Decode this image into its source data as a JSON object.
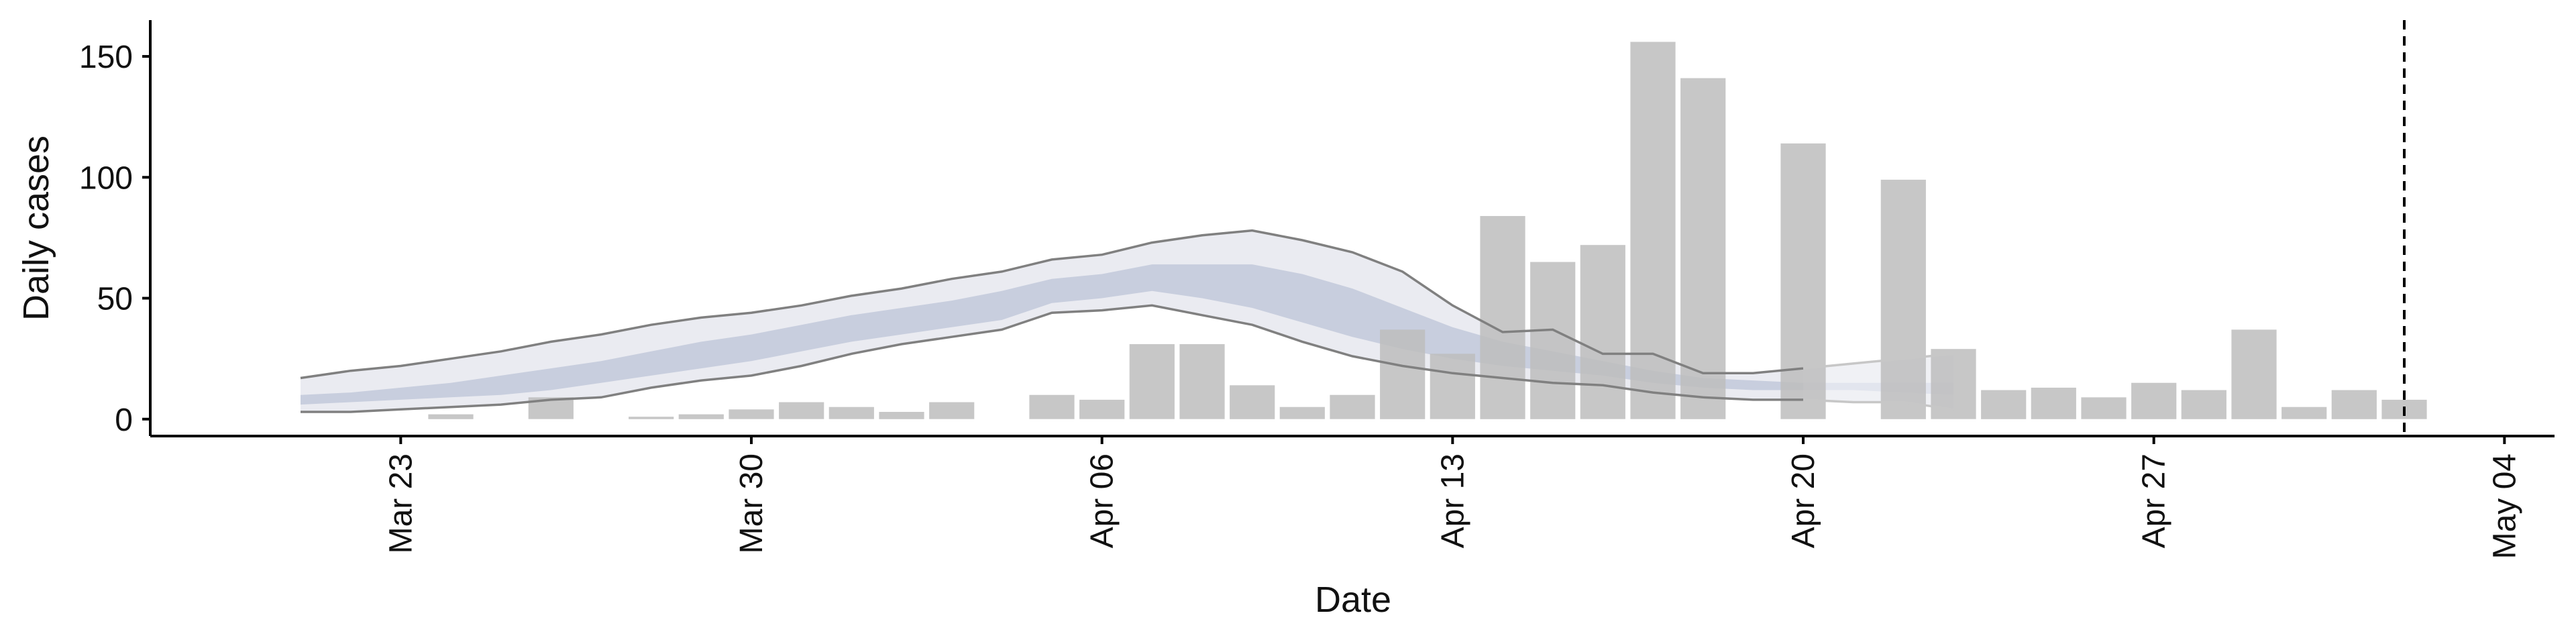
{
  "chart_data": {
    "type": "bar",
    "title": "",
    "xlabel": "Date",
    "ylabel": "Daily cases",
    "x_ticks": [
      "Mar 23",
      "Mar 30",
      "Apr 06",
      "Apr 13",
      "Apr 20",
      "Apr 27",
      "May 04"
    ],
    "y_ticks": [
      "0",
      "50",
      "100",
      "150"
    ],
    "ylim": [
      -7,
      165
    ],
    "grid": false,
    "bars": {
      "color": "#bdbdbd",
      "dates": [
        "2020-03-24",
        "2020-03-26",
        "2020-03-28",
        "2020-03-29",
        "2020-03-30",
        "2020-03-31",
        "2020-04-01",
        "2020-04-02",
        "2020-04-03",
        "2020-04-05",
        "2020-04-06",
        "2020-04-07",
        "2020-04-08",
        "2020-04-09",
        "2020-04-10",
        "2020-04-11",
        "2020-04-12",
        "2020-04-13",
        "2020-04-14",
        "2020-04-15",
        "2020-04-16",
        "2020-04-17",
        "2020-04-18",
        "2020-04-20",
        "2020-04-22",
        "2020-04-23",
        "2020-04-24",
        "2020-04-25",
        "2020-04-26",
        "2020-04-27",
        "2020-04-28",
        "2020-04-29",
        "2020-04-30",
        "2020-05-01",
        "2020-05-02"
      ],
      "values": [
        2,
        9,
        1,
        2,
        4,
        7,
        5,
        3,
        7,
        10,
        8,
        31,
        31,
        14,
        5,
        10,
        37,
        27,
        84,
        65,
        72,
        156,
        141,
        114,
        99,
        29,
        12,
        13,
        9,
        15,
        12,
        37,
        5,
        12,
        8
      ]
    },
    "estimate": {
      "dates": [
        "2020-03-21",
        "2020-03-22",
        "2020-03-23",
        "2020-03-24",
        "2020-03-25",
        "2020-03-26",
        "2020-03-27",
        "2020-03-28",
        "2020-03-29",
        "2020-03-30",
        "2020-03-31",
        "2020-04-01",
        "2020-04-02",
        "2020-04-03",
        "2020-04-04",
        "2020-04-05",
        "2020-04-06",
        "2020-04-07",
        "2020-04-08",
        "2020-04-09",
        "2020-04-10",
        "2020-04-11",
        "2020-04-12",
        "2020-04-13",
        "2020-04-14",
        "2020-04-15",
        "2020-04-16",
        "2020-04-17",
        "2020-04-18",
        "2020-04-19",
        "2020-04-20"
      ],
      "outer_upper": [
        17,
        20,
        22,
        25,
        28,
        32,
        35,
        39,
        42,
        44,
        47,
        51,
        54,
        58,
        61,
        66,
        68,
        73,
        76,
        78,
        74,
        69,
        61,
        47,
        36,
        37,
        27,
        27,
        19,
        19,
        21
      ],
      "outer_lower": [
        3,
        3,
        4,
        5,
        6,
        8,
        9,
        13,
        16,
        18,
        22,
        27,
        31,
        34,
        37,
        44,
        45,
        47,
        43,
        39,
        32,
        26,
        22,
        19,
        17,
        15,
        14,
        11,
        9,
        8,
        8
      ],
      "inner_upper": [
        10,
        11,
        13,
        15,
        18,
        21,
        24,
        28,
        32,
        35,
        39,
        43,
        46,
        49,
        53,
        58,
        60,
        64,
        64,
        64,
        60,
        54,
        46,
        38,
        32,
        28,
        24,
        20,
        17,
        16,
        15
      ],
      "inner_lower": [
        6,
        7,
        8,
        9,
        10,
        12,
        15,
        18,
        21,
        24,
        28,
        32,
        35,
        38,
        41,
        48,
        50,
        53,
        50,
        46,
        40,
        34,
        29,
        25,
        22,
        20,
        18,
        15,
        13,
        12,
        12
      ],
      "colors": {
        "outer": "#eaebf1",
        "inner": "#c8cede",
        "line": "#808080"
      }
    },
    "forecast": {
      "dates": [
        "2020-04-20",
        "2020-04-21",
        "2020-04-22",
        "2020-04-23"
      ],
      "outer_upper": [
        21,
        23,
        25,
        27
      ],
      "outer_lower": [
        8,
        7,
        7,
        4
      ],
      "inner_upper": [
        15,
        15,
        15,
        15
      ],
      "inner_lower": [
        12,
        12,
        11,
        10
      ],
      "colors": {
        "outer": "#f0f1f5",
        "inner": "#e2e5ee",
        "line": "#c7c7c7"
      }
    },
    "vline": {
      "date": "2020-05-02",
      "style": "dashed"
    }
  }
}
